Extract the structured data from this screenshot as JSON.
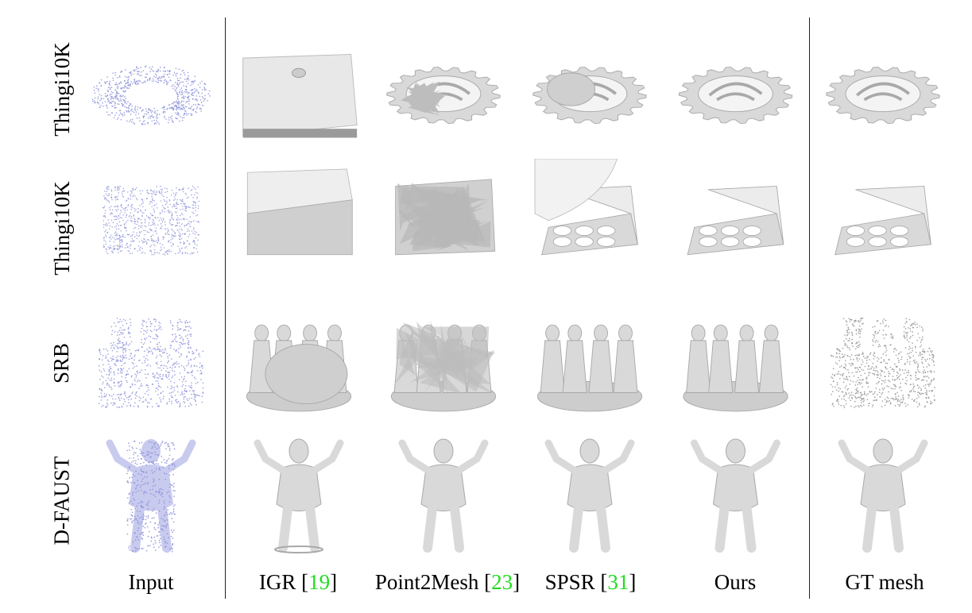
{
  "rows": [
    {
      "label": "Thingi10K",
      "object": "gear"
    },
    {
      "label": "Thingi10K",
      "object": "tray"
    },
    {
      "label": "SRB",
      "object": "statue"
    },
    {
      "label": "D-FAUST",
      "object": "human"
    }
  ],
  "columns": [
    {
      "label": "Input",
      "ref": "",
      "style": "points"
    },
    {
      "label": "IGR [",
      "ref": "19",
      "close": "]",
      "style": "mesh-failed"
    },
    {
      "label": "Point2Mesh [",
      "ref": "23",
      "close": "]",
      "style": "mesh-noisy"
    },
    {
      "label": "SPSR [",
      "ref": "31",
      "close": "]",
      "style": "mesh-blobby"
    },
    {
      "label": "Ours",
      "ref": "",
      "style": "mesh-good"
    },
    {
      "label": "GT mesh",
      "ref": "",
      "style": "mesh-gt"
    }
  ],
  "colors": {
    "points": "#8a8fd8",
    "mesh": "#d9d9d9",
    "mesh_dark": "#a9a9a9",
    "ref": "#22dd22"
  }
}
